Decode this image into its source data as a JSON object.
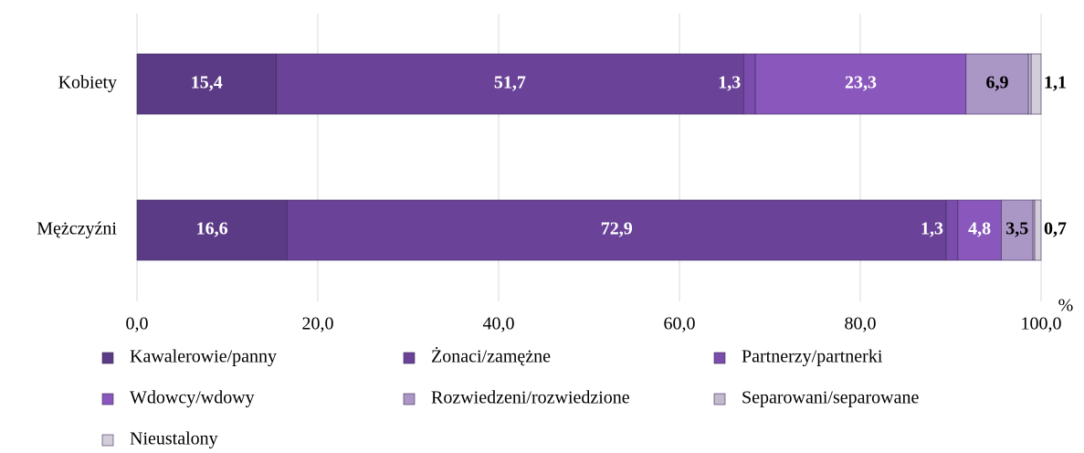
{
  "chart_data": {
    "type": "stacked-bar-horizontal",
    "categories": [
      "Kobiety",
      "Mężczyźni"
    ],
    "series": [
      {
        "name": "Kawalerowie/panny",
        "color": "#5b3b85",
        "label_color": "#ffffff",
        "values": [
          15.4,
          16.6
        ],
        "value_labels": [
          "15,4",
          "16,6"
        ]
      },
      {
        "name": "Żonaci/zamężne",
        "color": "#6a4398",
        "label_color": "#ffffff",
        "values": [
          51.7,
          72.9
        ],
        "value_labels": [
          "51,7",
          "72,9"
        ]
      },
      {
        "name": "Partnerzy/partnerki",
        "color": "#7a4cab",
        "label_color": "#ffffff",
        "values": [
          1.3,
          1.3
        ],
        "value_labels": [
          "1,3",
          "1,3"
        ]
      },
      {
        "name": "Wdowcy/wdowy",
        "color": "#8a58bd",
        "label_color": "#ffffff",
        "values": [
          23.3,
          4.8
        ],
        "value_labels": [
          "23,3",
          "4,8"
        ]
      },
      {
        "name": "Rozwiedzeni/rozwiedzione",
        "color": "#ab97c6",
        "label_color": "#000000",
        "values": [
          6.9,
          3.5
        ],
        "value_labels": [
          "6,9",
          "3,5"
        ]
      },
      {
        "name": "Separowani/separowane",
        "color": "#c3bace",
        "label_color": "#000000",
        "values": [
          0.3,
          0.2
        ],
        "value_labels": [
          null,
          null
        ]
      },
      {
        "name": "Nieustalony",
        "color": "#d2cdd8",
        "label_color": "#000000",
        "values": [
          1.1,
          0.7
        ],
        "value_labels": [
          "1,1",
          "0,7"
        ]
      }
    ],
    "x_unit": "%",
    "xlim": [
      0,
      100
    ],
    "xticks": [
      {
        "value": 0,
        "label": "0,0"
      },
      {
        "value": 20,
        "label": "20,0"
      },
      {
        "value": 40,
        "label": "40,0"
      },
      {
        "value": 60,
        "label": "60,0"
      },
      {
        "value": 80,
        "label": "80,0"
      },
      {
        "value": 100,
        "label": "100,0"
      }
    ],
    "grid": true
  }
}
